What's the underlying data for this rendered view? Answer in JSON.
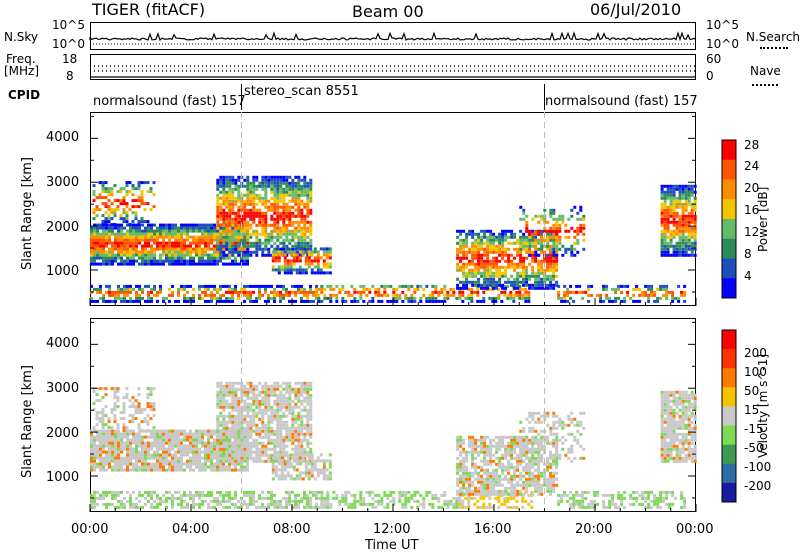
{
  "header": {
    "left": "TIGER (fitACF)",
    "center": "Beam 00",
    "right": "06/Jul/2010"
  },
  "nsky_panel": {
    "left_label": "N.Sky",
    "right_label": "N.Search",
    "left_ticks": [
      "10^5",
      "10^0"
    ],
    "right_ticks": [
      "10^5",
      "10^0"
    ]
  },
  "freq_panel": {
    "left_label_1": "Freq.",
    "left_label_2": "[MHz]",
    "right_label": "Nave",
    "left_ticks": [
      "18",
      "8"
    ],
    "right_ticks": [
      "60",
      "0"
    ]
  },
  "cpid": {
    "label": "CPID",
    "segments": [
      {
        "label": "normalsound (fast) 157"
      },
      {
        "label": "stereo_scan 8551"
      },
      {
        "label": "normalsound (fast) 157"
      }
    ]
  },
  "chart_data": [
    {
      "type": "heatmap",
      "name": "power",
      "ylabel": "Slant Range [km]",
      "ylim": [
        180,
        4600
      ],
      "yticks": [
        "1000",
        "2000",
        "3000",
        "4000"
      ],
      "xlim_hours": [
        0,
        24
      ],
      "colorbar_label": "Power [dB]",
      "colorbar_ticks": [
        "28",
        "24",
        "20",
        "16",
        "12",
        "8",
        "4"
      ],
      "colors": [
        "#0000ff",
        "#1f4fbf",
        "#2e8b57",
        "#66bb6a",
        "#f5c400",
        "#ff8c00",
        "#ff5500",
        "#ff0000"
      ],
      "mode_change_hours": [
        6.0,
        18.0
      ]
    },
    {
      "type": "heatmap",
      "name": "velocity",
      "ylabel": "Slant Range [km]",
      "ylim": [
        180,
        4600
      ],
      "yticks": [
        "1000",
        "2000",
        "3000",
        "4000"
      ],
      "xlim_hours": [
        0,
        24
      ],
      "colorbar_label": "Velocity [m s^-1]",
      "colorbar_ticks": [
        "200",
        "100",
        "50",
        "15",
        "-15",
        "-50",
        "-100",
        "-200"
      ],
      "colors": [
        "#1a1aa0",
        "#2e6ca6",
        "#3c9a52",
        "#7ed957",
        "#c8c8c8",
        "#f5c400",
        "#ff7a00",
        "#ff3300",
        "#ff0000"
      ],
      "mode_change_hours": [
        6.0,
        18.0
      ]
    }
  ],
  "xaxis": {
    "ticks": [
      "00:00",
      "04:00",
      "08:00",
      "12:00",
      "16:00",
      "20:00",
      "00:00"
    ],
    "label": "Time UT"
  }
}
